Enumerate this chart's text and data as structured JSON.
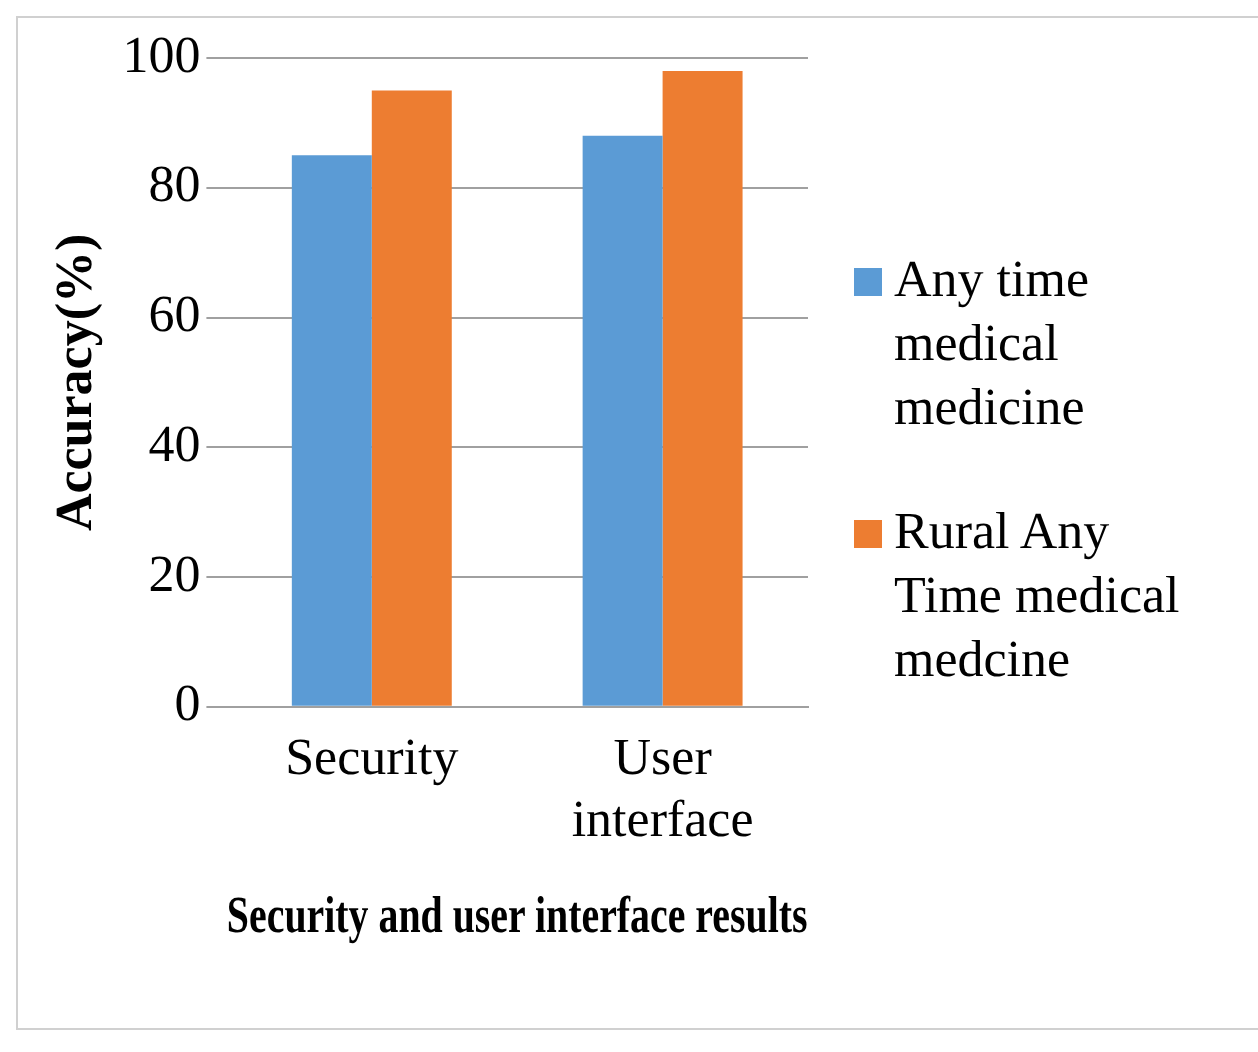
{
  "chart_data": {
    "type": "bar",
    "xlabel": "Security and user interface results",
    "ylabel": "Accuracy(%)",
    "categories": [
      "Security",
      "User interface"
    ],
    "series": [
      {
        "name": "Any time medical medicine",
        "color": "#5b9bd5",
        "values": [
          85,
          88
        ]
      },
      {
        "name": "Rural Any Time medical medcine",
        "color": "#ed7d31",
        "values": [
          95,
          98
        ]
      }
    ],
    "ylim": [
      0,
      100
    ],
    "yticks": [
      0,
      20,
      40,
      60,
      80,
      100
    ],
    "grid": "y",
    "legend": "right"
  }
}
